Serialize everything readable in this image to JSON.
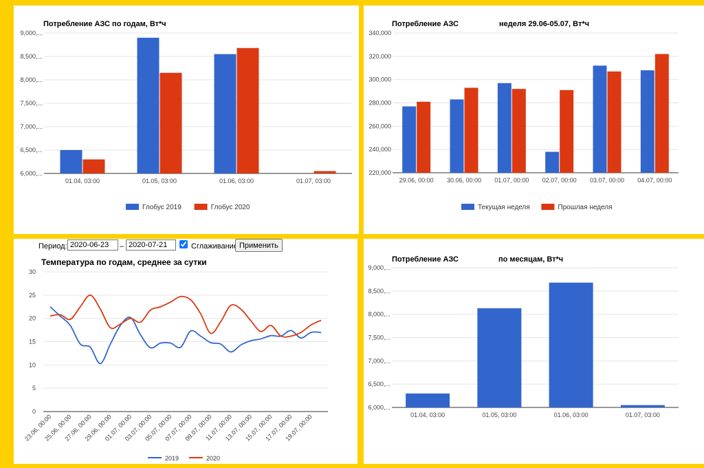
{
  "colors": {
    "blue": "#3366CC",
    "red": "#DC3912",
    "frame": "#FFD000"
  },
  "controls": {
    "period_label": "Период:",
    "date_from": "2020-06-23",
    "dash": "–",
    "date_to": "2020-07-21",
    "smoothing_checked": true,
    "smoothing_label": "Сглаживание",
    "apply_label": "Применить"
  },
  "chart_data": [
    {
      "id": "yearly",
      "type": "bar",
      "title": "Потребление АЗС по годам, Вт*ч",
      "categories": [
        "01.04, 03:00",
        "01.05, 03:00",
        "01.06, 03:00",
        "01.07, 03:00"
      ],
      "y_ticks": [
        "9,000,...",
        "8,500,...",
        "8,000,...",
        "7,500,...",
        "7,000,...",
        "6,500,...",
        "6,000,..."
      ],
      "ylim": [
        6000000,
        9000000
      ],
      "series": [
        {
          "name": "Глобус 2019",
          "color": "#3366CC",
          "values": [
            6500000,
            8900000,
            8550000,
            null
          ]
        },
        {
          "name": "Глобус 2020",
          "color": "#DC3912",
          "values": [
            6300000,
            8150000,
            8680000,
            6050000
          ]
        }
      ],
      "legend": "bottom"
    },
    {
      "id": "weekly",
      "type": "bar",
      "title": "Потребление АЗС",
      "subtitle": "неделя 29.06-05.07, Вт*ч",
      "categories": [
        "29.06, 00:00",
        "30.06, 00:00",
        "01.07, 00:00",
        "02.07, 00:00",
        "03.07, 00:00",
        "04.07, 00:00"
      ],
      "y_ticks": [
        "340,000",
        "320,000",
        "300,000",
        "280,000",
        "260,000",
        "240,000",
        "220,000"
      ],
      "ylim": [
        220000,
        340000
      ],
      "series": [
        {
          "name": "Текущая неделя",
          "color": "#3366CC",
          "values": [
            277000,
            283000,
            297000,
            238000,
            312000,
            308000
          ]
        },
        {
          "name": "Прошлая неделя",
          "color": "#DC3912",
          "values": [
            281000,
            293000,
            292000,
            291000,
            307000,
            322000
          ]
        }
      ],
      "legend": "bottom"
    },
    {
      "id": "temperature",
      "type": "line",
      "title": "Температура по годам, среднее за сутки",
      "x": [
        "23.06, 00:00",
        "24.06",
        "25.06, 00:00",
        "26.06",
        "27.06, 00:00",
        "28.06",
        "29.06, 00:00",
        "30.06",
        "01.07, 00:00",
        "02.07",
        "03.07, 00:00",
        "04.07",
        "05.07, 00:00",
        "06.07",
        "07.07, 00:00",
        "08.07",
        "09.07, 00:00",
        "10.07",
        "11.07, 00:00",
        "12.07",
        "13.07, 00:00",
        "14.07",
        "15.07, 00:00",
        "16.07",
        "17.07, 00:00",
        "18.07",
        "19.07, 00:00",
        "20.07"
      ],
      "x_tick_labels": [
        "23.06, 00:00",
        "25.06, 00:00",
        "27.06, 00:00",
        "29.06, 00:00",
        "01.07, 00:00",
        "03.07, 00:00",
        "05.07, 00:00",
        "07.07, 00:00",
        "09.07, 00:00",
        "11.07, 00:00",
        "13.07, 00:00",
        "15.07, 00:00",
        "17.07, 00:00",
        "19.07, 00:00"
      ],
      "y_ticks": [
        "30",
        "25",
        "20",
        "15",
        "10",
        "5",
        "0"
      ],
      "ylim": [
        0,
        30
      ],
      "series": [
        {
          "name": "2019",
          "color": "#3366CC",
          "values": [
            22.5,
            20.5,
            18.5,
            14.5,
            13.8,
            10.3,
            14.5,
            18.5,
            20.2,
            16.5,
            13.7,
            14.7,
            14.7,
            13.8,
            17.3,
            16.2,
            14.8,
            14.5,
            12.8,
            14.3,
            15.2,
            15.6,
            16.3,
            16.2,
            17.4,
            15.8,
            17.0,
            17.0
          ]
        },
        {
          "name": "2020",
          "color": "#DC3912",
          "values": [
            20.5,
            20.8,
            19.8,
            22.5,
            25.0,
            22.0,
            18.0,
            18.8,
            20.0,
            19.2,
            21.8,
            22.5,
            23.5,
            24.7,
            24.0,
            21.0,
            16.8,
            19.3,
            22.8,
            22.0,
            19.5,
            17.2,
            18.5,
            16.2,
            16.2,
            17.0,
            18.6,
            19.6
          ]
        }
      ],
      "legend": "bottom"
    },
    {
      "id": "monthly",
      "type": "bar",
      "title": "Потребление АЗС",
      "subtitle": "по месяцам, Вт*ч",
      "categories": [
        "01.04, 03:00",
        "01.05, 03:00",
        "01.06, 03:00",
        "01.07, 03:00"
      ],
      "y_ticks": [
        "9,000,...",
        "8,500,...",
        "8,000,...",
        "7,500,...",
        "7,000,...",
        "6,500,...",
        "6,000,..."
      ],
      "ylim": [
        6000000,
        9000000
      ],
      "series": [
        {
          "name": "",
          "color": "#3366CC",
          "values": [
            6300000,
            8130000,
            8680000,
            6050000
          ]
        }
      ]
    }
  ]
}
